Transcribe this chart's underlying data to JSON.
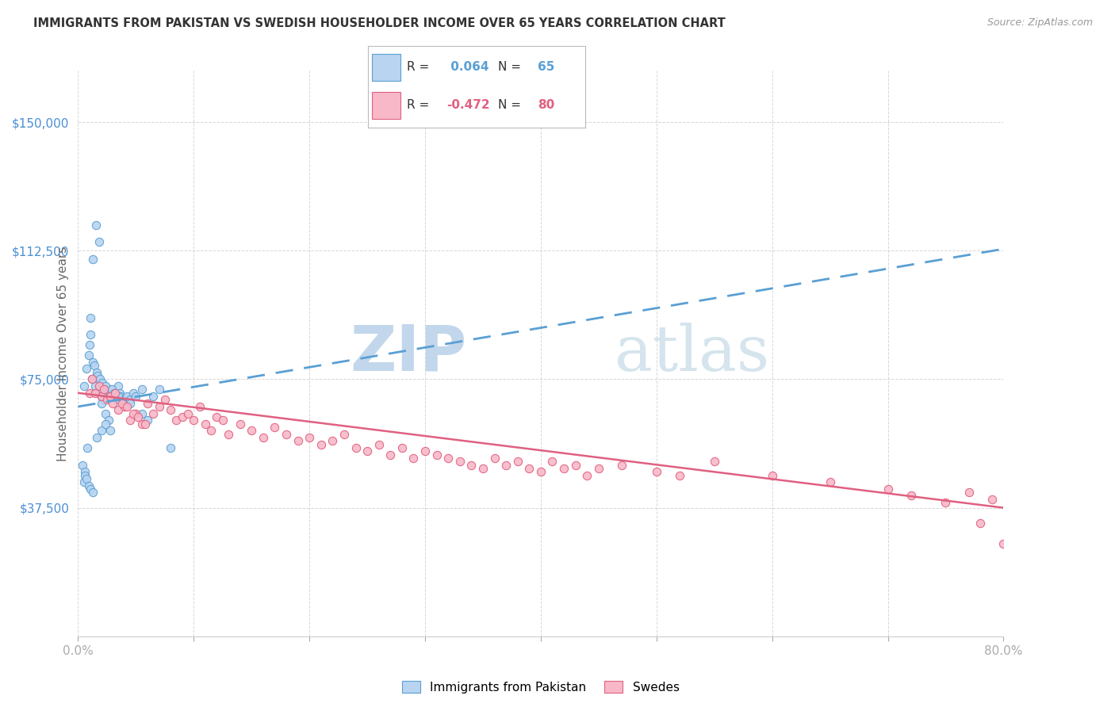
{
  "title": "IMMIGRANTS FROM PAKISTAN VS SWEDISH HOUSEHOLDER INCOME OVER 65 YEARS CORRELATION CHART",
  "source": "Source: ZipAtlas.com",
  "ylabel": "Householder Income Over 65 years",
  "yticks": [
    0,
    37500,
    75000,
    112500,
    150000
  ],
  "ytick_labels": [
    "",
    "$37,500",
    "$75,000",
    "$112,500",
    "$150,000"
  ],
  "xmin": 0.0,
  "xmax": 80.0,
  "ymin": 0,
  "ymax": 165000,
  "legend1_r": " 0.064",
  "legend1_n": "65",
  "legend2_r": "-0.472",
  "legend2_n": "80",
  "color_blue_fill": "#b8d4f0",
  "color_blue_edge": "#5a9fd4",
  "color_blue_line": "#5a9fd4",
  "color_pink_fill": "#f8b8c8",
  "color_pink_edge": "#e06080",
  "color_pink_line": "#e06080",
  "color_axis_label": "#4a8fd4",
  "color_title": "#333333",
  "color_source": "#999999",
  "watermark_text": "ZIPatlas",
  "watermark_color": "#d0e4f4",
  "blue_x": [
    1.2,
    1.5,
    1.8,
    2.0,
    2.2,
    2.5,
    2.8,
    3.0,
    3.2,
    3.5,
    0.5,
    0.7,
    0.9,
    1.0,
    1.1,
    1.3,
    1.4,
    1.6,
    1.7,
    1.9,
    2.1,
    2.3,
    2.4,
    2.6,
    2.7,
    2.9,
    3.1,
    3.3,
    3.4,
    3.6,
    3.7,
    3.9,
    4.0,
    4.2,
    4.5,
    4.8,
    5.0,
    5.5,
    0.4,
    0.6,
    0.8,
    1.05,
    1.25,
    1.55,
    1.85,
    2.05,
    2.35,
    2.65,
    0.5,
    0.6,
    0.7,
    0.9,
    1.1,
    1.3,
    1.6,
    2.0,
    2.4,
    2.8,
    3.5,
    4.5,
    5.5,
    6.0,
    6.5,
    7.0,
    8.0
  ],
  "blue_y": [
    75000,
    73000,
    71000,
    70000,
    69000,
    71000,
    72000,
    70000,
    71000,
    73000,
    73000,
    78000,
    82000,
    85000,
    88000,
    80000,
    79000,
    77000,
    76000,
    75000,
    74000,
    72000,
    73000,
    71000,
    70000,
    72000,
    71000,
    70000,
    69000,
    71000,
    70000,
    69000,
    68000,
    70000,
    69000,
    71000,
    70000,
    72000,
    50000,
    48000,
    55000,
    93000,
    110000,
    120000,
    115000,
    68000,
    65000,
    63000,
    45000,
    47000,
    46000,
    44000,
    43000,
    42000,
    58000,
    60000,
    62000,
    60000,
    70000,
    68000,
    65000,
    63000,
    70000,
    72000,
    55000
  ],
  "pink_x": [
    1.0,
    1.5,
    2.0,
    2.5,
    3.0,
    3.5,
    4.0,
    4.5,
    5.0,
    5.5,
    6.0,
    6.5,
    7.0,
    7.5,
    8.0,
    8.5,
    9.0,
    9.5,
    10.0,
    10.5,
    11.0,
    11.5,
    12.0,
    12.5,
    13.0,
    14.0,
    15.0,
    16.0,
    17.0,
    18.0,
    19.0,
    20.0,
    21.0,
    22.0,
    23.0,
    24.0,
    25.0,
    26.0,
    27.0,
    28.0,
    29.0,
    30.0,
    31.0,
    32.0,
    33.0,
    34.0,
    35.0,
    36.0,
    37.0,
    38.0,
    39.0,
    40.0,
    41.0,
    42.0,
    43.0,
    44.0,
    45.0,
    47.0,
    50.0,
    52.0,
    55.0,
    60.0,
    65.0,
    70.0,
    72.0,
    75.0,
    77.0,
    78.0,
    79.0,
    80.0,
    1.2,
    1.8,
    2.2,
    2.8,
    3.2,
    3.8,
    4.2,
    4.8,
    5.2,
    5.8
  ],
  "pink_y": [
    71000,
    71000,
    70000,
    69000,
    68000,
    66000,
    67000,
    63000,
    65000,
    62000,
    68000,
    65000,
    67000,
    69000,
    66000,
    63000,
    64000,
    65000,
    63000,
    67000,
    62000,
    60000,
    64000,
    63000,
    59000,
    62000,
    60000,
    58000,
    61000,
    59000,
    57000,
    58000,
    56000,
    57000,
    59000,
    55000,
    54000,
    56000,
    53000,
    55000,
    52000,
    54000,
    53000,
    52000,
    51000,
    50000,
    49000,
    52000,
    50000,
    51000,
    49000,
    48000,
    51000,
    49000,
    50000,
    47000,
    49000,
    50000,
    48000,
    47000,
    51000,
    47000,
    45000,
    43000,
    41000,
    39000,
    42000,
    33000,
    40000,
    27000,
    75000,
    73000,
    72000,
    70000,
    71000,
    68000,
    67000,
    65000,
    64000,
    62000
  ],
  "blue_trend_x": [
    0,
    80
  ],
  "blue_trend_y": [
    67000,
    113000
  ],
  "pink_trend_x": [
    0,
    80
  ],
  "pink_trend_y": [
    71000,
    37500
  ]
}
